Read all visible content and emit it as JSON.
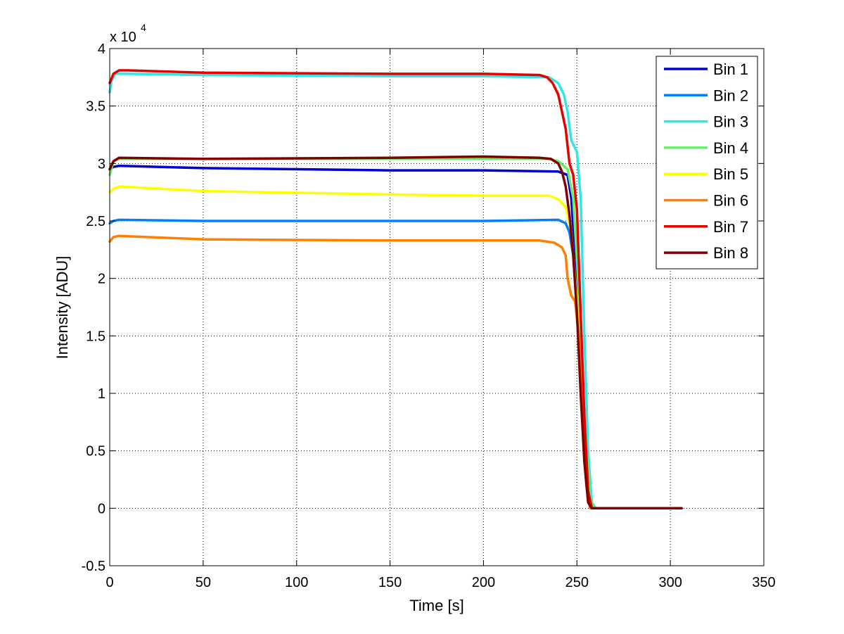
{
  "chart_data": {
    "type": "line",
    "title": "",
    "xlabel": "Time [s]",
    "ylabel": "Intensity [ADU]",
    "xlim": [
      0,
      350
    ],
    "ylim": [
      -0.5,
      4
    ],
    "y_multiplier": "x 10",
    "y_multiplier_exponent": "4",
    "grid": true,
    "legend_position": "top-right",
    "xticks": [
      0,
      50,
      100,
      150,
      200,
      250,
      300,
      350
    ],
    "xtick_labels": [
      "0",
      "50",
      "100",
      "150",
      "200",
      "250",
      "300",
      "350"
    ],
    "yticks": [
      -0.5,
      0,
      0.5,
      1,
      1.5,
      2,
      2.5,
      3,
      3.5,
      4
    ],
    "ytick_labels": [
      "-0.5",
      "0",
      "0.5",
      "1",
      "1.5",
      "2",
      "2.5",
      "3",
      "3.5",
      "4"
    ],
    "series": [
      {
        "name": "Bin 1",
        "color": "#0000cc",
        "x": [
          0,
          2,
          5,
          50,
          150,
          200,
          240,
          245,
          247,
          248,
          250,
          253,
          256,
          258,
          260,
          306
        ],
        "y": [
          2.95,
          2.97,
          2.98,
          2.96,
          2.94,
          2.94,
          2.93,
          2.9,
          2.7,
          2.45,
          2.0,
          1.0,
          0.2,
          0.0,
          0.0,
          0.0
        ]
      },
      {
        "name": "Bin 2",
        "color": "#0080ff",
        "x": [
          0,
          2,
          5,
          50,
          150,
          200,
          240,
          244,
          246,
          248,
          251,
          254,
          257,
          259,
          306
        ],
        "y": [
          2.48,
          2.5,
          2.51,
          2.5,
          2.5,
          2.5,
          2.51,
          2.48,
          2.4,
          2.2,
          1.5,
          0.6,
          0.05,
          0.0,
          0.0
        ]
      },
      {
        "name": "Bin 3",
        "color": "#33e6e6",
        "x": [
          0,
          1,
          3,
          10,
          50,
          150,
          200,
          235,
          240,
          243,
          245,
          247,
          250,
          252,
          254,
          256,
          258,
          260,
          306
        ],
        "y": [
          3.62,
          3.72,
          3.78,
          3.78,
          3.77,
          3.76,
          3.76,
          3.75,
          3.7,
          3.6,
          3.45,
          3.2,
          3.1,
          2.7,
          1.5,
          0.5,
          0.05,
          0.0,
          0.0
        ]
      },
      {
        "name": "Bin 4",
        "color": "#66ee66",
        "x": [
          0,
          2,
          5,
          50,
          150,
          200,
          235,
          240,
          245,
          248,
          251,
          254,
          257,
          259,
          306
        ],
        "y": [
          2.9,
          3.02,
          3.04,
          3.04,
          3.04,
          3.04,
          3.04,
          3.02,
          2.95,
          2.7,
          1.9,
          0.8,
          0.1,
          0.0,
          0.0
        ]
      },
      {
        "name": "Bin 5",
        "color": "#ffff00",
        "x": [
          0,
          2,
          5,
          50,
          150,
          200,
          235,
          240,
          244,
          247,
          250,
          253,
          256,
          258,
          306
        ],
        "y": [
          2.75,
          2.78,
          2.8,
          2.76,
          2.73,
          2.72,
          2.72,
          2.69,
          2.62,
          2.4,
          1.8,
          0.8,
          0.1,
          0.0,
          0.0
        ]
      },
      {
        "name": "Bin 6",
        "color": "#ff8000",
        "x": [
          0,
          2,
          5,
          50,
          150,
          200,
          230,
          238,
          242,
          244,
          245,
          247,
          249,
          251,
          253,
          255,
          257,
          306
        ],
        "y": [
          2.32,
          2.36,
          2.37,
          2.34,
          2.33,
          2.33,
          2.33,
          2.31,
          2.27,
          2.2,
          2.0,
          1.85,
          1.8,
          1.5,
          0.8,
          0.2,
          0.0,
          0.0
        ]
      },
      {
        "name": "Bin 7",
        "color": "#e60000",
        "x": [
          0,
          2,
          5,
          10,
          50,
          150,
          200,
          230,
          234,
          237,
          240,
          242,
          244,
          246,
          248,
          250,
          252,
          254,
          256,
          258,
          306
        ],
        "y": [
          3.7,
          3.78,
          3.81,
          3.81,
          3.79,
          3.78,
          3.78,
          3.77,
          3.75,
          3.7,
          3.6,
          3.45,
          3.3,
          3.0,
          2.9,
          2.6,
          1.7,
          0.8,
          0.15,
          0.0,
          0.0
        ]
      },
      {
        "name": "Bin 8",
        "color": "#800000",
        "x": [
          0,
          2,
          5,
          50,
          150,
          200,
          230,
          236,
          240,
          242,
          244,
          246,
          248,
          250,
          252,
          254,
          256,
          258,
          306
        ],
        "y": [
          2.95,
          3.02,
          3.05,
          3.04,
          3.05,
          3.06,
          3.05,
          3.04,
          3.0,
          2.93,
          2.8,
          2.55,
          2.2,
          1.7,
          1.0,
          0.4,
          0.05,
          0.0,
          0.0
        ]
      }
    ]
  }
}
